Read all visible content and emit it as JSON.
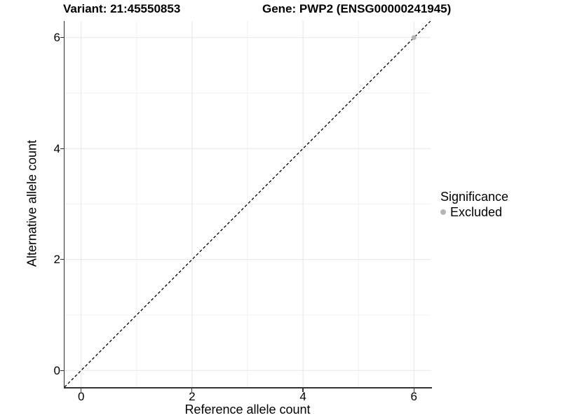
{
  "titles": {
    "variant": "Variant: 21:45550853",
    "gene": "Gene: PWP2 (ENSG00000241945)"
  },
  "legend": {
    "title": "Significance",
    "items": [
      {
        "label": "Excluded",
        "color": "#b5b5b5"
      }
    ]
  },
  "colors": {
    "grid_major": "#e6e6e6",
    "grid_minor": "#f1f1f1",
    "axis_line": "#333333",
    "dashed_line": "#000000",
    "text": "#000000",
    "background": "#ffffff"
  },
  "chart_data": {
    "type": "scatter",
    "title": "Variant: 21:45550853   Gene: PWP2 (ENSG00000241945)",
    "xlabel": "Reference allele count",
    "ylabel": "Alternative allele count",
    "xlim": [
      -0.3,
      6.3
    ],
    "ylim": [
      -0.3,
      6.3
    ],
    "x_ticks": [
      0,
      2,
      4,
      6
    ],
    "y_ticks": [
      0,
      2,
      4,
      6
    ],
    "x_minor_ticks": [
      1,
      3,
      5
    ],
    "y_minor_ticks": [
      1,
      3,
      5
    ],
    "grid": true,
    "legend_position": "right",
    "series": [
      {
        "name": "Excluded",
        "color": "#b5b5b5",
        "points": [
          {
            "x": 6,
            "y": 6
          }
        ]
      }
    ],
    "reference_line": {
      "type": "identity y=x",
      "style": "dashed",
      "color": "#000000"
    }
  }
}
